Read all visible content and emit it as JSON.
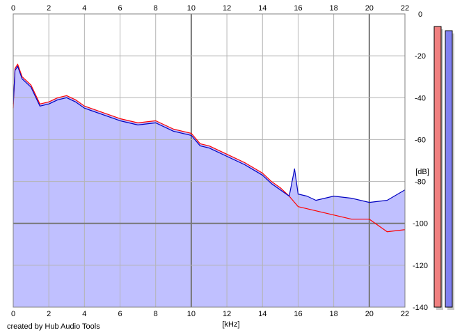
{
  "chart_data": {
    "type": "line",
    "xlabel": "[kHz]",
    "ylabel": "[dB]",
    "xlim": [
      0,
      22
    ],
    "ylim": [
      -140,
      0
    ],
    "x_ticks": [
      0,
      2,
      4,
      6,
      8,
      10,
      12,
      14,
      16,
      18,
      20,
      22
    ],
    "y_ticks": [
      0,
      -20,
      -40,
      -60,
      -80,
      -100,
      -120,
      -140
    ],
    "grid": true,
    "fill_color": "#c0c0ff",
    "series": [
      {
        "color": "#ff0000",
        "x": [
          0,
          0.1,
          0.25,
          0.5,
          1,
          1.5,
          2,
          2.5,
          3,
          3.5,
          4,
          5,
          6,
          7,
          8,
          9,
          10,
          10.5,
          11,
          12,
          13,
          14,
          14.5,
          15,
          15.5,
          16,
          16.5,
          17,
          18,
          19,
          20,
          21,
          22
        ],
        "values": [
          -45,
          -26,
          -24,
          -30,
          -34,
          -43,
          -42,
          -40,
          -39,
          -41,
          -44,
          -47,
          -50,
          -52,
          -51,
          -55,
          -57,
          -62,
          -63,
          -67,
          -71,
          -76,
          -80,
          -83,
          -87,
          -92,
          -93,
          -94,
          -96,
          -98,
          -98,
          -104,
          -103
        ]
      },
      {
        "color": "#0000c0",
        "x": [
          0,
          0.1,
          0.25,
          0.5,
          1,
          1.5,
          2,
          2.5,
          3,
          3.5,
          4,
          5,
          6,
          7,
          8,
          9,
          10,
          10.5,
          11,
          12,
          13,
          14,
          14.5,
          15,
          15.5,
          15.8,
          16,
          16.5,
          17,
          18,
          19,
          20,
          21,
          22
        ],
        "values": [
          -43,
          -27,
          -25,
          -31,
          -35,
          -44,
          -43,
          -41,
          -40,
          -42,
          -45,
          -48,
          -51,
          -53,
          -52,
          -56,
          -58,
          -63,
          -64,
          -68,
          -72,
          -77,
          -81,
          -84,
          -87,
          -74,
          -86,
          -87,
          -89,
          -87,
          -88,
          -90,
          -89,
          -84
        ]
      }
    ]
  },
  "meters": {
    "left": {
      "level": -6,
      "color": "#f08080"
    },
    "right": {
      "level": -8,
      "color": "#8080f0"
    }
  },
  "credit": "created by Hub Audio Tools"
}
